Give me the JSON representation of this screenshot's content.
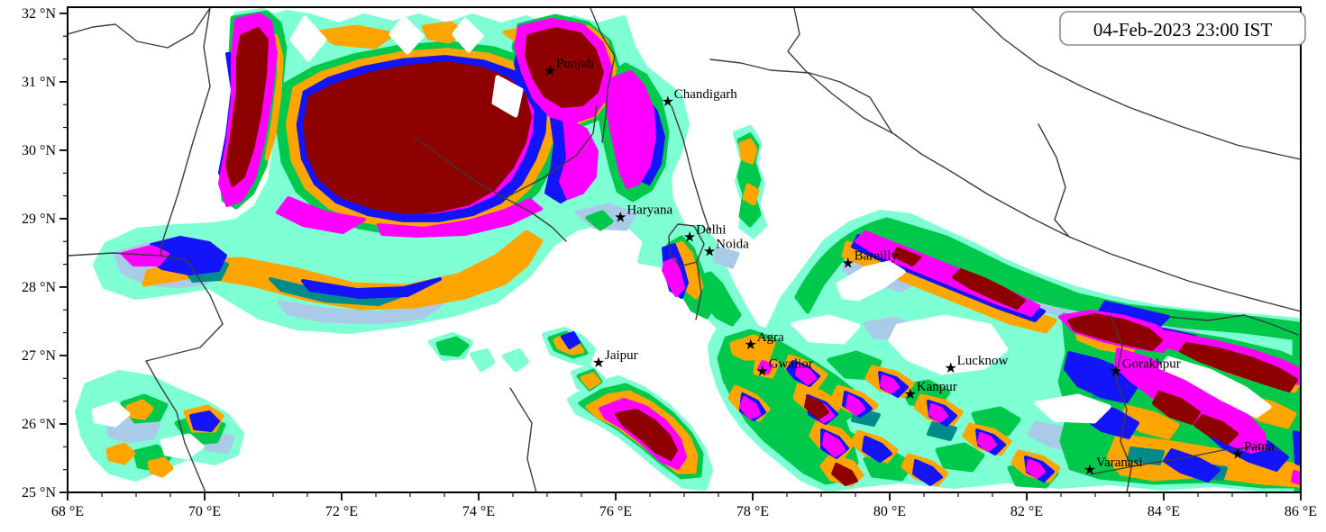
{
  "title_box": {
    "timestamp": "04-Feb-2023 23:00 IST"
  },
  "map_extent": {
    "lon_min": 68,
    "lon_max": 86,
    "lat_min": 25,
    "lat_max": 32.09
  },
  "axes": {
    "x": {
      "labels": [
        "68 °E",
        "70 °E",
        "72 °E",
        "74 °E",
        "76 °E",
        "78 °E",
        "80 °E",
        "82 °E",
        "84 °E",
        "86 °E"
      ],
      "values": [
        68,
        70,
        72,
        74,
        76,
        78,
        80,
        82,
        84,
        86
      ],
      "minor_step": 0.5
    },
    "y": {
      "labels": [
        "25 °N",
        "26 °N",
        "27 °N",
        "28 °N",
        "29 °N",
        "30 °N",
        "31 °N",
        "32 °N"
      ],
      "values": [
        25,
        26,
        27,
        28,
        29,
        30,
        31,
        32
      ],
      "minor_divisions": 3
    }
  },
  "cities": [
    {
      "name": "Punjab",
      "lon": 75.04,
      "lat": 31.17
    },
    {
      "name": "Chandigarh",
      "lon": 76.76,
      "lat": 30.72
    },
    {
      "name": "Haryana",
      "lon": 76.07,
      "lat": 29.03
    },
    {
      "name": "Delhi",
      "lon": 77.08,
      "lat": 28.74
    },
    {
      "name": "Noida",
      "lon": 77.37,
      "lat": 28.53
    },
    {
      "name": "Bareilly",
      "lon": 79.39,
      "lat": 28.36
    },
    {
      "name": "Jaipur",
      "lon": 75.75,
      "lat": 26.91
    },
    {
      "name": "Agra",
      "lon": 77.97,
      "lat": 27.17
    },
    {
      "name": "Gwalior",
      "lon": 78.14,
      "lat": 26.78
    },
    {
      "name": "Lucknow",
      "lon": 80.89,
      "lat": 26.83
    },
    {
      "name": "Kanpur",
      "lon": 80.3,
      "lat": 26.45
    },
    {
      "name": "Gorakhpur",
      "lon": 83.3,
      "lat": 26.78
    },
    {
      "name": "Varanasi",
      "lon": 82.92,
      "lat": 25.34
    },
    {
      "name": "Patna",
      "lon": 85.08,
      "lat": 25.57
    }
  ],
  "color_scale": [
    {
      "name": "level-1-lightest",
      "hex": "#7FFFD4"
    },
    {
      "name": "level-2",
      "hex": "#A9CBE8"
    },
    {
      "name": "level-3",
      "hex": "#00C84B"
    },
    {
      "name": "level-4",
      "hex": "#008B8B"
    },
    {
      "name": "level-5",
      "hex": "#FFA500"
    },
    {
      "name": "level-6",
      "hex": "#1414FA"
    },
    {
      "name": "level-7",
      "hex": "#FF00FF"
    },
    {
      "name": "level-8-highest",
      "hex": "#8E0000"
    }
  ],
  "boundary_color": "#3c3c3c",
  "marker_glyph": "★"
}
